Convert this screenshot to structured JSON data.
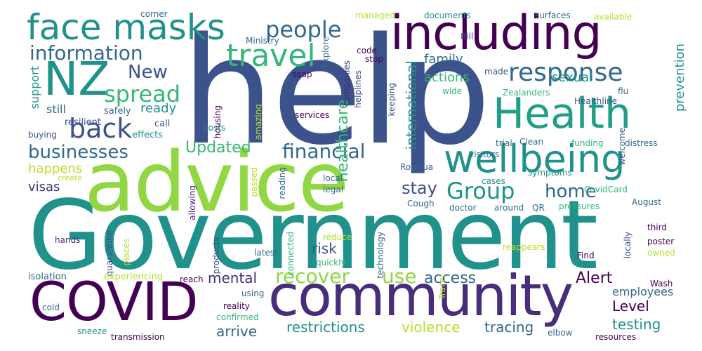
{
  "palette": {
    "dark_purple": "#440154",
    "indigo": "#3b528b",
    "slate_blue": "#31688e",
    "teal": "#21918c",
    "green": "#35b779",
    "lime": "#90d743",
    "yellow": "#fde725"
  },
  "words": [
    {
      "id": "help",
      "text": "help",
      "color": "#3b528b"
    },
    {
      "id": "government",
      "text": "Government",
      "color": "#21918c"
    },
    {
      "id": "advice",
      "text": "advice",
      "color": "#90d743"
    },
    {
      "id": "community",
      "text": "community",
      "color": "#472d7b"
    },
    {
      "id": "covid",
      "text": "COVID",
      "color": "#440154"
    },
    {
      "id": "including",
      "text": "including",
      "color": "#440154"
    },
    {
      "id": "face-masks",
      "text": "face masks",
      "color": "#21918c"
    },
    {
      "id": "nz",
      "text": "NZ",
      "color": "#21918c"
    },
    {
      "id": "health",
      "text": "Health",
      "color": "#1f9e89"
    },
    {
      "id": "wellbeing",
      "text": "wellbeing",
      "color": "#21918c"
    },
    {
      "id": "back",
      "text": "back",
      "color": "#3b528b"
    },
    {
      "id": "travel",
      "text": "travel",
      "color": "#35b779"
    },
    {
      "id": "information",
      "text": "information",
      "color": "#31688e"
    },
    {
      "id": "people",
      "text": "people",
      "color": "#31688e"
    },
    {
      "id": "response",
      "text": "response",
      "color": "#31688e"
    },
    {
      "id": "spread",
      "text": "spread",
      "color": "#35b779"
    },
    {
      "id": "new",
      "text": "New",
      "color": "#3b528b"
    },
    {
      "id": "businesses",
      "text": "businesses",
      "color": "#31688e"
    },
    {
      "id": "financial",
      "text": "financial",
      "color": "#31688e"
    },
    {
      "id": "group",
      "text": "Group",
      "color": "#21918c"
    },
    {
      "id": "home",
      "text": "home",
      "color": "#31688e"
    },
    {
      "id": "updated",
      "text": "Updated",
      "color": "#35b779"
    },
    {
      "id": "recover",
      "text": "recover",
      "color": "#90d743"
    },
    {
      "id": "use",
      "text": "use",
      "color": "#90d743"
    },
    {
      "id": "stay",
      "text": "stay",
      "color": "#3b528b"
    },
    {
      "id": "risk",
      "text": "risk",
      "color": "#3b528b"
    },
    {
      "id": "mental",
      "text": "mental",
      "color": "#472d7b"
    },
    {
      "id": "access",
      "text": "access",
      "color": "#31688e"
    },
    {
      "id": "alert",
      "text": "Alert",
      "color": "#440154"
    },
    {
      "id": "level",
      "text": "Level",
      "color": "#440154"
    },
    {
      "id": "testing",
      "text": "testing",
      "color": "#21918c"
    },
    {
      "id": "tracing",
      "text": "tracing",
      "color": "#31688e"
    },
    {
      "id": "violence",
      "text": "violence",
      "color": "#b5de2b"
    },
    {
      "id": "restrictions",
      "text": "restrictions",
      "color": "#21918c"
    },
    {
      "id": "arrive",
      "text": "arrive",
      "color": "#31688e"
    },
    {
      "id": "employees",
      "text": "employees",
      "color": "#31688e"
    },
    {
      "id": "happens",
      "text": "happens",
      "color": "#b5de2b"
    },
    {
      "id": "visas",
      "text": "visas",
      "color": "#472d7b"
    },
    {
      "id": "still",
      "text": "still",
      "color": "#31688e"
    },
    {
      "id": "ready",
      "text": "ready",
      "color": "#21918c"
    },
    {
      "id": "family",
      "text": "family",
      "color": "#31688e"
    },
    {
      "id": "actions",
      "text": "actions",
      "color": "#35b779"
    },
    {
      "id": "sexual",
      "text": "sexual",
      "color": "#21918c"
    },
    {
      "id": "prevention",
      "text": "prevention",
      "color": "#21918c"
    },
    {
      "id": "healthcare",
      "text": "healthcare",
      "color": "#35b779"
    },
    {
      "id": "international",
      "text": "international",
      "color": "#21918c"
    },
    {
      "id": "support",
      "text": "support",
      "color": "#21918c"
    },
    {
      "id": "safely",
      "text": "safely",
      "color": "#31688e"
    },
    {
      "id": "buying",
      "text": "buying",
      "color": "#3b528b"
    },
    {
      "id": "resilient",
      "text": "resilient",
      "color": "#3b528b"
    },
    {
      "id": "effects",
      "text": "effects",
      "color": "#21918c"
    },
    {
      "id": "call",
      "text": "call",
      "color": "#3b528b"
    },
    {
      "id": "create",
      "text": "create",
      "color": "#b5de2b"
    },
    {
      "id": "corner",
      "text": "corner",
      "color": "#31688e"
    },
    {
      "id": "ministry",
      "text": "Ministry",
      "color": "#31688e"
    },
    {
      "id": "managed",
      "text": "managed",
      "color": "#b5de2b"
    },
    {
      "id": "documents",
      "text": "documents",
      "color": "#21918c"
    },
    {
      "id": "surfaces",
      "text": "surfaces",
      "color": "#31688e"
    },
    {
      "id": "welcome",
      "text": "welcome",
      "color": "#3b528b"
    },
    {
      "id": "available",
      "text": "available",
      "color": "#b5de2b"
    },
    {
      "id": "code",
      "text": "code",
      "color": "#440154"
    },
    {
      "id": "bill",
      "text": "Bill",
      "color": "#3b528b"
    },
    {
      "id": "explore",
      "text": "Explore",
      "color": "#31688e"
    },
    {
      "id": "stop",
      "text": "stop",
      "color": "#440154"
    },
    {
      "id": "made",
      "text": "made",
      "color": "#3b528b"
    },
    {
      "id": "zealanders",
      "text": "Zealanders",
      "color": "#35b779"
    },
    {
      "id": "healthline",
      "text": "Healthline",
      "color": "#3b528b"
    },
    {
      "id": "flu",
      "text": "flu",
      "color": "#31688e"
    },
    {
      "id": "wide",
      "text": "wide",
      "color": "#35b779"
    },
    {
      "id": "companies",
      "text": "companies",
      "color": "#472d7b"
    },
    {
      "id": "helplines",
      "text": "helplines",
      "color": "#3b528b"
    },
    {
      "id": "keeping",
      "text": "keeping",
      "color": "#3b528b"
    },
    {
      "id": "services",
      "text": "services",
      "color": "#440154"
    },
    {
      "id": "housing",
      "text": "housing",
      "color": "#440154"
    },
    {
      "id": "soap",
      "text": "soap",
      "color": "#440154"
    },
    {
      "id": "costs",
      "text": "costs",
      "color": "#21918c"
    },
    {
      "id": "amazing",
      "text": "amazing",
      "color": "#b5de2b"
    },
    {
      "id": "trial",
      "text": "trial",
      "color": "#31688e"
    },
    {
      "id": "clean",
      "text": "Clean",
      "color": "#31688e"
    },
    {
      "id": "visitors",
      "text": "visitors",
      "color": "#31688e"
    },
    {
      "id": "funding",
      "text": "funding",
      "color": "#35b779"
    },
    {
      "id": "distress",
      "text": "distress",
      "color": "#31688e"
    },
    {
      "id": "cases",
      "text": "cases",
      "color": "#21918c"
    },
    {
      "id": "symptoms",
      "text": "symptoms",
      "color": "#21918c"
    },
    {
      "id": "covidcard",
      "text": "CovidCard",
      "color": "#35b779"
    },
    {
      "id": "rotorua",
      "text": "Rotorua",
      "color": "#31688e"
    },
    {
      "id": "local",
      "text": "local",
      "color": "#31688e"
    },
    {
      "id": "legal",
      "text": "legal",
      "color": "#31688e"
    },
    {
      "id": "reading",
      "text": "reading",
      "color": "#31688e"
    },
    {
      "id": "passed",
      "text": "passed",
      "color": "#b5de2b"
    },
    {
      "id": "allowing",
      "text": "allowing",
      "color": "#472d7b"
    },
    {
      "id": "cough",
      "text": "Cough",
      "color": "#31688e"
    },
    {
      "id": "doctor",
      "text": "doctor",
      "color": "#31688e"
    },
    {
      "id": "around",
      "text": "around",
      "color": "#31688e"
    },
    {
      "id": "qr",
      "text": "QR",
      "color": "#31688e"
    },
    {
      "id": "pressures",
      "text": "pressures",
      "color": "#35b779"
    },
    {
      "id": "august",
      "text": "August",
      "color": "#31688e"
    },
    {
      "id": "hands",
      "text": "hands",
      "color": "#472d7b"
    },
    {
      "id": "quarantine",
      "text": "quarantine",
      "color": "#3b528b"
    },
    {
      "id": "places",
      "text": "places",
      "color": "#b5de2b"
    },
    {
      "id": "products",
      "text": "products",
      "color": "#3b528b"
    },
    {
      "id": "connected",
      "text": "connected",
      "color": "#35b779"
    },
    {
      "id": "latest",
      "text": "latest",
      "color": "#31688e"
    },
    {
      "id": "reduce",
      "text": "reduce",
      "color": "#b5de2b"
    },
    {
      "id": "quickly",
      "text": "quickly",
      "color": "#35b779"
    },
    {
      "id": "technology",
      "text": "technology",
      "color": "#31688e"
    },
    {
      "id": "third",
      "text": "third",
      "color": "#440154"
    },
    {
      "id": "poster",
      "text": "poster",
      "color": "#440154"
    },
    {
      "id": "reappears",
      "text": "reappears",
      "color": "#b5de2b"
    },
    {
      "id": "find",
      "text": "Find",
      "color": "#440154"
    },
    {
      "id": "locally",
      "text": "locally",
      "color": "#3b528b"
    },
    {
      "id": "owned",
      "text": "owned",
      "color": "#b5de2b"
    },
    {
      "id": "isolation",
      "text": "isolation",
      "color": "#31688e"
    },
    {
      "id": "experiencing",
      "text": "experiencing",
      "color": "#b5de2b"
    },
    {
      "id": "reach",
      "text": "reach",
      "color": "#440154"
    },
    {
      "id": "using",
      "text": "using",
      "color": "#31688e"
    },
    {
      "id": "tracer",
      "text": "Tracer",
      "color": "#b5de2b"
    },
    {
      "id": "wash",
      "text": "Wash",
      "color": "#440154"
    },
    {
      "id": "cold",
      "text": "cold",
      "color": "#31688e"
    },
    {
      "id": "reality",
      "text": "reality",
      "color": "#440154"
    },
    {
      "id": "confirmed",
      "text": "confirmed",
      "color": "#35b779"
    },
    {
      "id": "sneeze",
      "text": "sneeze",
      "color": "#21918c"
    },
    {
      "id": "transmission",
      "text": "transmission",
      "color": "#440154"
    },
    {
      "id": "elbow",
      "text": "elbow",
      "color": "#31688e"
    },
    {
      "id": "resources",
      "text": "resources",
      "color": "#440154"
    }
  ]
}
